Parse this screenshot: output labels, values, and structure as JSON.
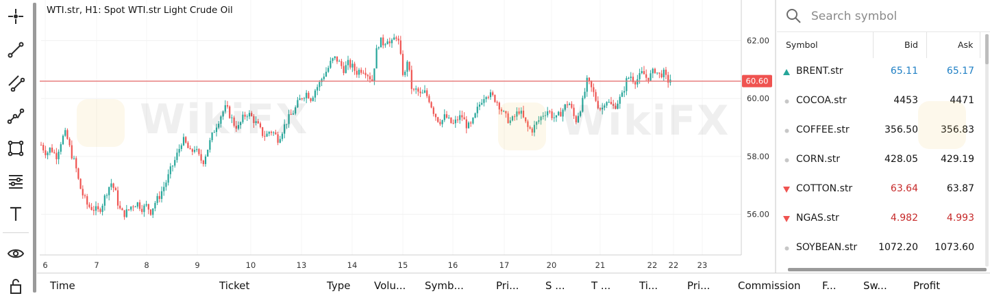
{
  "chart": {
    "title": "WTI.str, H1: Spot WTI.str Light Crude Oil",
    "current_price_label": "60.60",
    "watermark": "WikiFX"
  },
  "chart_data": {
    "type": "candlestick",
    "symbol": "WTI.str",
    "timeframe": "H1",
    "title": "WTI.str, H1: Spot WTI.str Light Crude Oil",
    "y_ticks": [
      "62.00",
      "60.00",
      "58.00",
      "56.00"
    ],
    "x_ticks": [
      "6",
      "7",
      "8",
      "9",
      "10",
      "13",
      "14",
      "15",
      "16",
      "17",
      "20",
      "21",
      "22",
      "22",
      "23"
    ],
    "current_price": 60.6,
    "ylim": [
      54.6,
      63.4
    ],
    "grid": true,
    "legend": "none",
    "colors": {
      "up": "#26a69a",
      "down": "#ef5350",
      "price_line": "#e57373",
      "price_badge": "#ef5350"
    },
    "path": [
      [
        0,
        58.4
      ],
      [
        8,
        58.1
      ],
      [
        14,
        58.3
      ],
      [
        22,
        58.0
      ],
      [
        30,
        58.6
      ],
      [
        36,
        58.8
      ],
      [
        44,
        58.1
      ],
      [
        50,
        57.7
      ],
      [
        56,
        57.0
      ],
      [
        62,
        56.6
      ],
      [
        68,
        56.3
      ],
      [
        76,
        56.2
      ],
      [
        84,
        56.1
      ],
      [
        90,
        56.4
      ],
      [
        96,
        56.8
      ],
      [
        102,
        57.1
      ],
      [
        108,
        56.8
      ],
      [
        114,
        56.2
      ],
      [
        120,
        56.0
      ],
      [
        126,
        56.1
      ],
      [
        132,
        56.3
      ],
      [
        140,
        56.4
      ],
      [
        148,
        56.2
      ],
      [
        154,
        56.3
      ],
      [
        160,
        56.1
      ],
      [
        166,
        56.4
      ],
      [
        172,
        56.6
      ],
      [
        178,
        56.9
      ],
      [
        184,
        57.2
      ],
      [
        190,
        57.6
      ],
      [
        196,
        57.9
      ],
      [
        202,
        58.3
      ],
      [
        206,
        58.6
      ],
      [
        212,
        58.4
      ],
      [
        218,
        58.1
      ],
      [
        224,
        58.3
      ],
      [
        230,
        58.0
      ],
      [
        236,
        57.8
      ],
      [
        242,
        58.2
      ],
      [
        248,
        58.6
      ],
      [
        254,
        59.0
      ],
      [
        260,
        59.3
      ],
      [
        264,
        59.5
      ],
      [
        270,
        59.7
      ],
      [
        276,
        59.4
      ],
      [
        282,
        59.1
      ],
      [
        288,
        59.0
      ],
      [
        294,
        59.3
      ],
      [
        300,
        59.5
      ],
      [
        306,
        59.4
      ],
      [
        312,
        59.2
      ],
      [
        318,
        59.0
      ],
      [
        322,
        58.8
      ],
      [
        328,
        58.7
      ],
      [
        334,
        58.9
      ],
      [
        340,
        58.8
      ],
      [
        346,
        58.6
      ],
      [
        352,
        58.9
      ],
      [
        358,
        59.2
      ],
      [
        364,
        59.4
      ],
      [
        370,
        59.6
      ],
      [
        376,
        59.9
      ],
      [
        382,
        60.1
      ],
      [
        388,
        60.2
      ],
      [
        394,
        60.0
      ],
      [
        400,
        60.3
      ],
      [
        406,
        60.5
      ],
      [
        412,
        60.8
      ],
      [
        418,
        61.0
      ],
      [
        424,
        61.3
      ],
      [
        430,
        61.4
      ],
      [
        436,
        61.2
      ],
      [
        442,
        61.0
      ],
      [
        448,
        61.2
      ],
      [
        454,
        61.1
      ],
      [
        460,
        60.9
      ],
      [
        466,
        61.0
      ],
      [
        472,
        61.0
      ],
      [
        478,
        60.8
      ],
      [
        484,
        60.6
      ],
      [
        488,
        61.5
      ],
      [
        494,
        62.0
      ],
      [
        500,
        61.9
      ],
      [
        506,
        62.1
      ],
      [
        510,
        61.8
      ],
      [
        514,
        62.0
      ],
      [
        518,
        62.2
      ],
      [
        522,
        61.9
      ],
      [
        526,
        61.2
      ],
      [
        530,
        60.6
      ],
      [
        534,
        61.4
      ],
      [
        538,
        60.8
      ],
      [
        542,
        60.2
      ],
      [
        548,
        60.3
      ],
      [
        554,
        60.1
      ],
      [
        560,
        60.2
      ],
      [
        566,
        60.0
      ],
      [
        572,
        59.6
      ],
      [
        578,
        59.3
      ],
      [
        584,
        59.2
      ],
      [
        590,
        59.4
      ],
      [
        596,
        59.2
      ],
      [
        602,
        59.1
      ],
      [
        608,
        59.3
      ],
      [
        614,
        59.4
      ],
      [
        620,
        59.1
      ],
      [
        626,
        59.0
      ],
      [
        632,
        59.3
      ],
      [
        638,
        59.7
      ],
      [
        644,
        60.0
      ],
      [
        650,
        60.2
      ],
      [
        656,
        60.1
      ],
      [
        662,
        60.0
      ],
      [
        668,
        59.8
      ],
      [
        674,
        59.5
      ],
      [
        680,
        59.3
      ],
      [
        686,
        59.2
      ],
      [
        692,
        59.4
      ],
      [
        698,
        59.6
      ],
      [
        704,
        59.3
      ],
      [
        710,
        59.0
      ],
      [
        716,
        58.9
      ],
      [
        722,
        59.1
      ],
      [
        728,
        59.3
      ],
      [
        734,
        59.5
      ],
      [
        740,
        59.6
      ],
      [
        746,
        59.4
      ],
      [
        752,
        59.3
      ],
      [
        758,
        59.5
      ],
      [
        764,
        59.7
      ],
      [
        770,
        59.9
      ],
      [
        776,
        59.5
      ],
      [
        780,
        59.2
      ],
      [
        786,
        59.6
      ],
      [
        792,
        60.0
      ],
      [
        796,
        60.6
      ],
      [
        800,
        60.5
      ],
      [
        806,
        60.2
      ],
      [
        812,
        59.8
      ],
      [
        818,
        59.6
      ],
      [
        824,
        60.0
      ],
      [
        830,
        59.8
      ],
      [
        836,
        59.7
      ],
      [
        842,
        59.9
      ],
      [
        848,
        60.1
      ],
      [
        854,
        60.6
      ],
      [
        860,
        60.8
      ],
      [
        866,
        60.6
      ],
      [
        872,
        60.7
      ],
      [
        878,
        60.9
      ],
      [
        884,
        60.7
      ],
      [
        890,
        60.8
      ],
      [
        896,
        61.0
      ],
      [
        902,
        60.8
      ],
      [
        908,
        60.9
      ],
      [
        914,
        60.6
      ],
      [
        920,
        60.7
      ]
    ]
  },
  "watchlist": {
    "search_placeholder": "Search symbol",
    "headers": {
      "symbol": "Symbol",
      "bid": "Bid",
      "ask": "Ask"
    },
    "rows": [
      {
        "symbol": "BRENT.str",
        "bid": "65.11",
        "ask": "65.17",
        "trend": "up",
        "color": "#1e7fc4"
      },
      {
        "symbol": "COCOA.str",
        "bid": "4453",
        "ask": "4471",
        "trend": "flat",
        "color": "#111111"
      },
      {
        "symbol": "COFFEE.str",
        "bid": "356.50",
        "ask": "356.83",
        "trend": "flat",
        "color": "#111111"
      },
      {
        "symbol": "CORN.str",
        "bid": "428.05",
        "ask": "429.19",
        "trend": "flat",
        "color": "#111111"
      },
      {
        "symbol": "COTTON.str",
        "bid": "63.64",
        "ask": "63.87",
        "trend": "down",
        "color": "#c62828",
        "ask_color": "#111111"
      },
      {
        "symbol": "NGAS.str",
        "bid": "4.982",
        "ask": "4.993",
        "trend": "down",
        "color": "#c62828"
      },
      {
        "symbol": "SOYBEAN.str",
        "bid": "1072.20",
        "ask": "1073.60",
        "trend": "flat",
        "color": "#111111"
      }
    ]
  },
  "toolbar": {
    "tools": [
      "crosshair-icon",
      "line-icon",
      "parallel-channel-icon",
      "polyline-icon",
      "rectangle-icon",
      "fibonacci-icon",
      "text-icon",
      "eye-icon",
      "lock-icon"
    ]
  },
  "bottom_columns": [
    "Time",
    "Ticket",
    "Type",
    "Volu...",
    "Symb...",
    "Pri...",
    "S ...",
    "T ...",
    "Ti...",
    "Pri...",
    "Commission",
    "F...",
    "Sw...",
    "Profit"
  ]
}
